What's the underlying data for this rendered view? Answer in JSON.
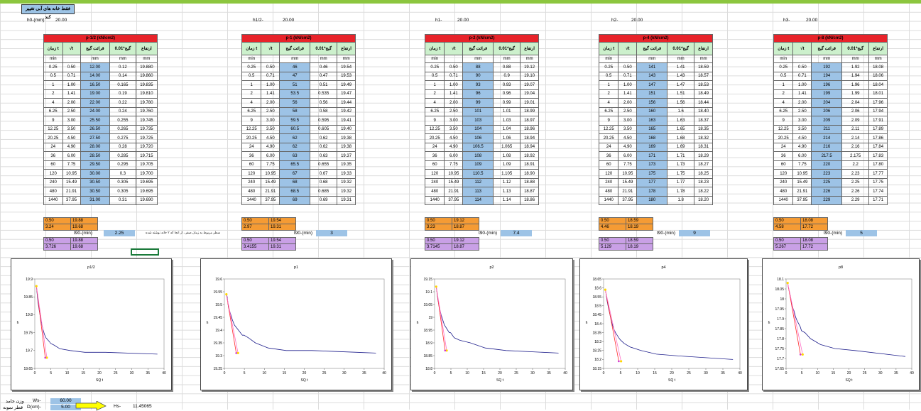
{
  "title_button": "فقط خانه های آبی تغییر کند",
  "heights": [
    {
      "label": "h0-(mm)",
      "value": "20.00"
    },
    {
      "label": "h1/2-",
      "value": "20.00"
    },
    {
      "label": "h1-",
      "value": "20.00"
    },
    {
      "label": "h2-",
      "value": "20.00"
    },
    {
      "label": "h3-",
      "value": "20.00"
    }
  ],
  "columns": [
    "زمان t",
    "√t",
    "قرائت گیج",
    "گیج*0.01",
    "ارتفاع"
  ],
  "units": [
    "min",
    "",
    "mm",
    "mm",
    "mm"
  ],
  "time": [
    "0.25",
    "0.5",
    "1",
    "2",
    "4",
    "6.25",
    "9",
    "12.25",
    "20.25",
    "24",
    "36",
    "60",
    "120",
    "240",
    "480",
    "1440"
  ],
  "sqrt_t": [
    "0.50",
    "0.71",
    "1.00",
    "1.41",
    "2.00",
    "2.50",
    "3.00",
    "3.50",
    "4.50",
    "4.90",
    "6.00",
    "7.75",
    "10.95",
    "15.49",
    "21.91",
    "37.95"
  ],
  "tables": [
    {
      "header": "p-1/2 (kN/cm2)",
      "gauge": [
        "12.00",
        "14.00",
        "16.50",
        "19.00",
        "22.00",
        "24.00",
        "25.50",
        "26.50",
        "27.50",
        "28.00",
        "28.50",
        "29.50",
        "30.00",
        "30.50",
        "30.50",
        "31.00"
      ],
      "gauge01": [
        "0.12",
        "0.14",
        "0.165",
        "0.19",
        "0.22",
        "0.24",
        "0.255",
        "0.265",
        "0.275",
        "0.28",
        "0.285",
        "0.295",
        "0.3",
        "0.305",
        "0.305",
        "0.31"
      ],
      "height": [
        "19.880",
        "19.860",
        "19.835",
        "19.810",
        "19.780",
        "19.760",
        "19.745",
        "19.735",
        "19.725",
        "19.720",
        "19.715",
        "19.705",
        "19.700",
        "19.695",
        "19.695",
        "19.690"
      ],
      "sum_orange": [
        [
          "0.50",
          "19.88"
        ],
        [
          "3.24",
          "19.68"
        ]
      ],
      "sum_purple": [
        [
          "0.50",
          "19.88"
        ],
        [
          "3.726",
          "19.68"
        ]
      ],
      "t90": "2.25",
      "chart": {
        "title": "p1/2",
        "ylabel": "h",
        "xlabel": "SQ t",
        "ylim": [
          19.65,
          19.9
        ],
        "yticks": [
          "19.9",
          "19.85",
          "19.8",
          "19.75",
          "19.7",
          "19.65"
        ]
      }
    },
    {
      "header": "p-1 (kN/cm2)",
      "gauge": [
        "46",
        "47",
        "51",
        "53.5",
        "56",
        "58",
        "59.5",
        "60.5",
        "62",
        "62",
        "63",
        "65.5",
        "67",
        "68",
        "68.5",
        "69"
      ],
      "gauge01": [
        "0.46",
        "0.47",
        "0.51",
        "0.535",
        "0.56",
        "0.58",
        "0.595",
        "0.605",
        "0.62",
        "0.62",
        "0.63",
        "0.655",
        "0.67",
        "0.68",
        "0.685",
        "0.69"
      ],
      "height": [
        "19.54",
        "19.53",
        "19.49",
        "19.47",
        "19.44",
        "19.42",
        "19.41",
        "19.40",
        "19.38",
        "19.38",
        "19.37",
        "19.35",
        "19.33",
        "19.32",
        "19.32",
        "19.31"
      ],
      "sum_orange": [
        [
          "0.50",
          "19.54"
        ],
        [
          "2.97",
          "19.31"
        ]
      ],
      "sum_purple": [
        [
          "0.50",
          "19.54"
        ],
        [
          "3.4155",
          "19.31"
        ]
      ],
      "t90": "3",
      "chart": {
        "title": "p1",
        "ylabel": "h",
        "xlabel": "SQ t",
        "ylim": [
          19.25,
          19.6
        ],
        "yticks": [
          "19.6",
          "19.55",
          "19.5",
          "19.45",
          "19.4",
          "19.35",
          "19.3",
          "19.25"
        ]
      }
    },
    {
      "header": "p-2 (kN/cm2)",
      "gauge": [
        "88",
        "90",
        "93",
        "96",
        "99",
        "101",
        "103",
        "104",
        "106",
        "106.5",
        "108",
        "109",
        "110.5",
        "112",
        "113",
        "114"
      ],
      "gauge01": [
        "0.88",
        "0.9",
        "0.93",
        "0.96",
        "0.99",
        "1.01",
        "1.03",
        "1.04",
        "1.06",
        "1.065",
        "1.08",
        "1.09",
        "1.105",
        "1.12",
        "1.13",
        "1.14"
      ],
      "height": [
        "19.12",
        "19.10",
        "19.07",
        "19.04",
        "19.01",
        "18.99",
        "18.97",
        "18.96",
        "18.94",
        "18.94",
        "18.92",
        "18.91",
        "18.90",
        "18.88",
        "18.87",
        "18.86"
      ],
      "sum_orange": [
        [
          "0.50",
          "19.12"
        ],
        [
          "3.23",
          "18.87"
        ]
      ],
      "sum_purple": [
        [
          "0.50",
          "19.12"
        ],
        [
          "3.7145",
          "18.87"
        ]
      ],
      "t90": "7.4",
      "chart": {
        "title": "p2",
        "ylabel": "h",
        "xlabel": "SQ t",
        "ylim": [
          18.8,
          19.15
        ],
        "yticks": [
          "19.15",
          "19.1",
          "19.05",
          "19",
          "18.95",
          "18.9",
          "18.85",
          "18.8"
        ]
      }
    },
    {
      "header": "p-4 (kN/cm2)",
      "gauge": [
        "141",
        "143",
        "147",
        "151",
        "156",
        "160",
        "163",
        "165",
        "168",
        "169",
        "171",
        "173",
        "175",
        "177",
        "178",
        "180"
      ],
      "gauge01": [
        "1.41",
        "1.43",
        "1.47",
        "1.51",
        "1.56",
        "1.6",
        "1.63",
        "1.65",
        "1.68",
        "1.69",
        "1.71",
        "1.73",
        "1.75",
        "1.77",
        "1.78",
        "1.8"
      ],
      "height": [
        "18.59",
        "18.57",
        "18.53",
        "18.49",
        "18.44",
        "18.40",
        "18.37",
        "18.35",
        "18.32",
        "18.31",
        "18.29",
        "18.27",
        "18.25",
        "18.23",
        "18.22",
        "18.20"
      ],
      "sum_orange": [
        [
          "0.50",
          "18.59"
        ],
        [
          "4.46",
          "18.19"
        ]
      ],
      "sum_purple": [
        [
          "0.50",
          "18.59"
        ],
        [
          "5.129",
          "18.19"
        ]
      ],
      "t90": "9",
      "chart": {
        "title": "p4",
        "ylabel": "h",
        "xlabel": "SQ t",
        "ylim": [
          18.15,
          18.65
        ],
        "yticks": [
          "18.65",
          "18.6",
          "18.55",
          "18.5",
          "18.45",
          "18.4",
          "18.35",
          "18.3",
          "18.25",
          "18.2",
          "18.15"
        ]
      }
    },
    {
      "header": "p-8 (kN/cm2)",
      "gauge": [
        "192",
        "194",
        "196",
        "199",
        "204",
        "206",
        "209",
        "211",
        "214",
        "216",
        "217.5",
        "220",
        "223",
        "225",
        "226",
        "229"
      ],
      "gauge01": [
        "1.92",
        "1.94",
        "1.96",
        "1.99",
        "2.04",
        "2.06",
        "2.09",
        "2.11",
        "2.14",
        "2.16",
        "2.175",
        "2.2",
        "2.23",
        "2.25",
        "2.26",
        "2.29"
      ],
      "height": [
        "18.08",
        "18.06",
        "18.04",
        "18.01",
        "17.96",
        "17.94",
        "17.91",
        "17.89",
        "17.86",
        "17.84",
        "17.83",
        "17.80",
        "17.77",
        "17.75",
        "17.74",
        "17.71"
      ],
      "sum_orange": [
        [
          "0.50",
          "18.08"
        ],
        [
          "4.58",
          "17.72"
        ]
      ],
      "sum_purple": [
        [
          "0.50",
          "18.08"
        ],
        [
          "5.267",
          "17.72"
        ]
      ],
      "t90": "5",
      "chart": {
        "title": "p8",
        "ylabel": "h",
        "xlabel": "SQ t",
        "ylim": [
          17.65,
          18.1
        ],
        "yticks": [
          "18.1",
          "18.05",
          "18",
          "17.95",
          "17.9",
          "17.85",
          "17.8",
          "17.75",
          "17.7",
          "17.65"
        ]
      }
    }
  ],
  "t90_label": "t90-(min)",
  "note": "سطر مربوط به زمان صفر ، از انجا که ۲ خانه نوشته شده",
  "xticks": [
    "0",
    "5",
    "10",
    "15",
    "20",
    "25",
    "30",
    "35",
    "40"
  ],
  "bottom": {
    "ws_label": "Ws-",
    "ws_value": "60.00",
    "ws_fa": "وزن جامد",
    "d_label": "D(cm)-",
    "d_value": "5.00",
    "d_fa": "قطر نمونه",
    "hs_label": "Hs-",
    "hs_value": "11.45065"
  },
  "colors": {
    "header_red": "#e8232a",
    "blue_cell": "#9dc3e6",
    "orange": "#f59b34",
    "purple": "#c9a0e6",
    "curve": "#1f1f8c",
    "fit_line": "#ff2a2a",
    "fit_point": "#ffd700"
  }
}
